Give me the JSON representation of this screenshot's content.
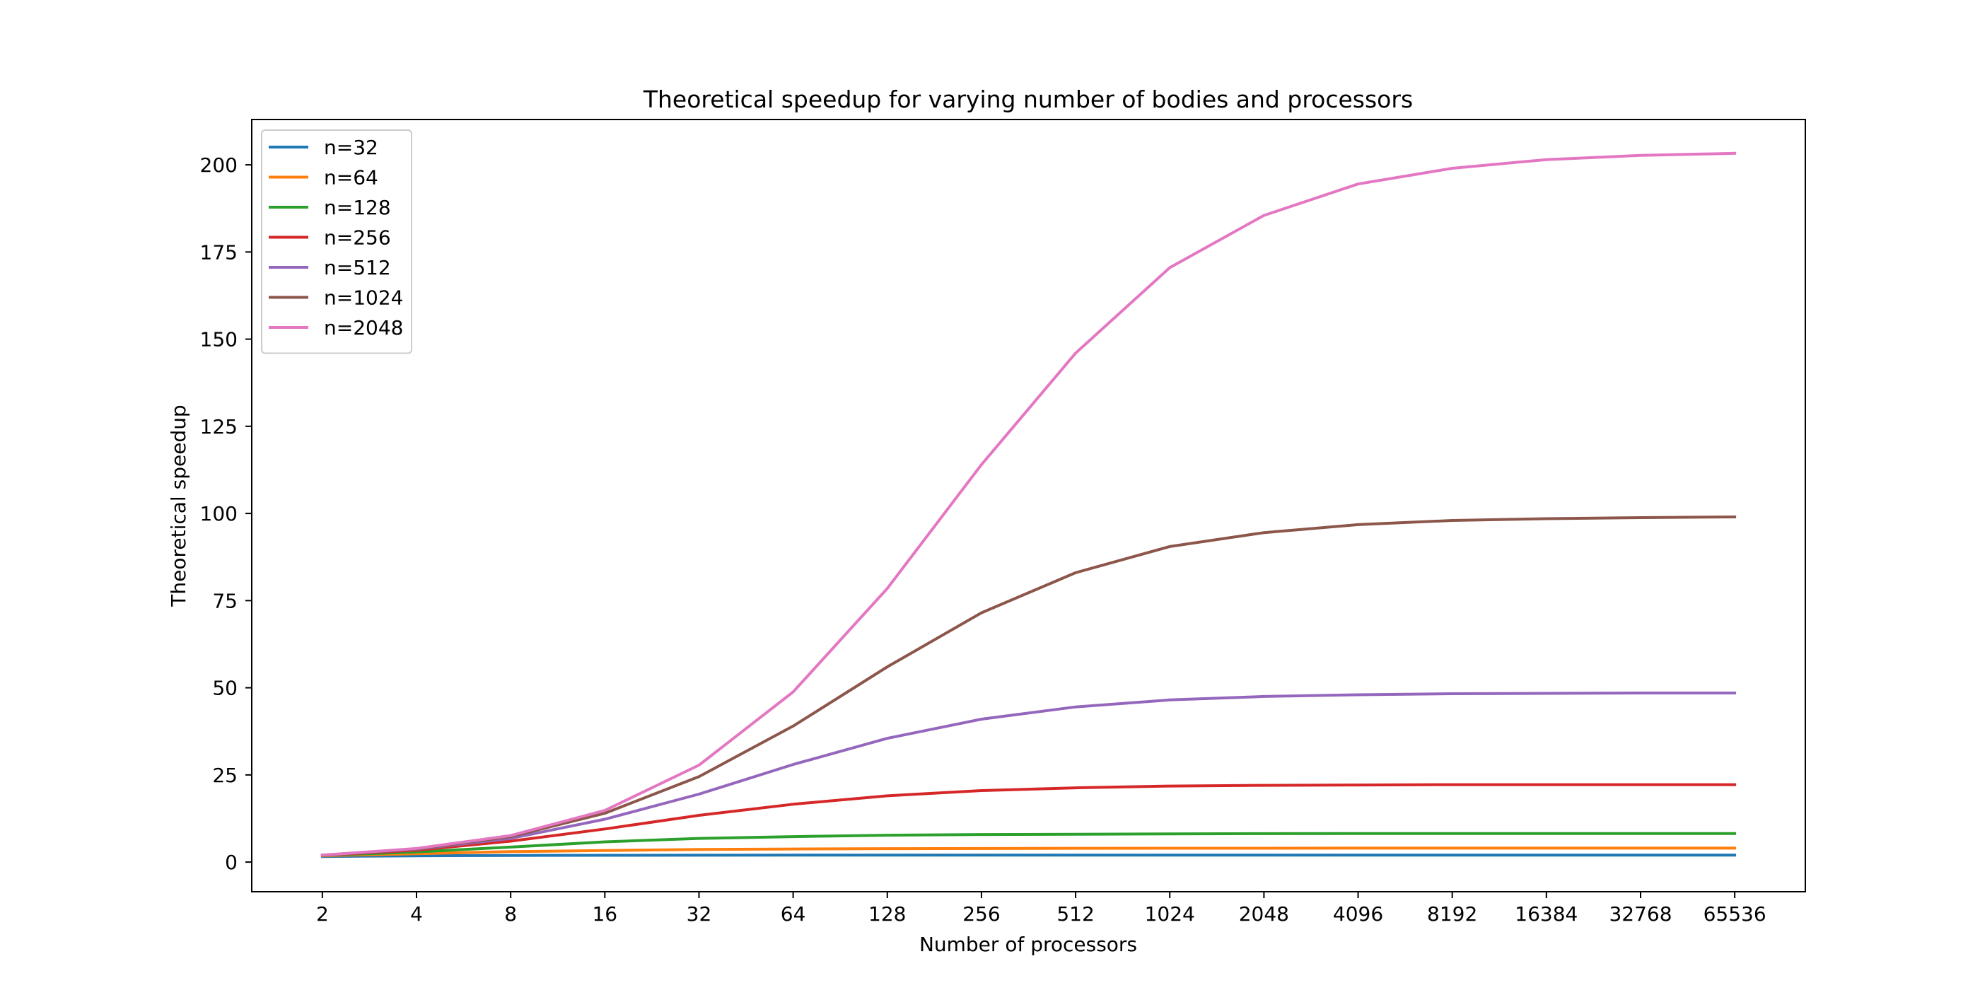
{
  "chart_data": {
    "type": "line",
    "title": "Theoretical speedup for varying number of bodies and processors",
    "xlabel": "Number of processors",
    "ylabel": "Theoretical speedup",
    "x_scale": "log2",
    "x": [
      2,
      4,
      8,
      16,
      32,
      64,
      128,
      256,
      512,
      1024,
      2048,
      4096,
      8192,
      16384,
      32768,
      65536
    ],
    "x_tick_labels": [
      "2",
      "4",
      "8",
      "16",
      "32",
      "64",
      "128",
      "256",
      "512",
      "1024",
      "2048",
      "4096",
      "8192",
      "16384",
      "32768",
      "65536"
    ],
    "y_ticks": [
      0,
      25,
      50,
      75,
      100,
      125,
      150,
      175,
      200
    ],
    "y_tick_labels": [
      "0",
      "25",
      "50",
      "75",
      "100",
      "125",
      "150",
      "175",
      "200"
    ],
    "ylim": [
      -8.5,
      213
    ],
    "grid": false,
    "legend_position": "upper-left",
    "series": [
      {
        "name": "n=32",
        "color": "#1f77b4",
        "values": [
          1.6,
          1.8,
          1.9,
          1.95,
          1.97,
          1.98,
          1.99,
          2.0,
          2.0,
          2.0,
          2.0,
          2.0,
          2.0,
          2.0,
          2.0,
          2.0
        ]
      },
      {
        "name": "n=64",
        "color": "#ff7f0e",
        "values": [
          1.8,
          2.4,
          3.0,
          3.3,
          3.6,
          3.75,
          3.85,
          3.9,
          3.95,
          3.97,
          3.98,
          4.0,
          4.0,
          4.0,
          4.0,
          4.0
        ]
      },
      {
        "name": "n=128",
        "color": "#2ca02c",
        "values": [
          1.9,
          2.9,
          4.3,
          5.8,
          6.8,
          7.3,
          7.7,
          7.9,
          8.0,
          8.1,
          8.15,
          8.2,
          8.2,
          8.2,
          8.2,
          8.2
        ]
      },
      {
        "name": "n=256",
        "color": "#d62728",
        "values": [
          1.95,
          3.4,
          6.0,
          9.5,
          13.4,
          16.6,
          19.0,
          20.5,
          21.3,
          21.8,
          22.0,
          22.1,
          22.2,
          22.2,
          22.2,
          22.2
        ]
      },
      {
        "name": "n=512",
        "color": "#9467bd",
        "values": [
          1.97,
          3.7,
          6.8,
          12.3,
          19.5,
          28.0,
          35.5,
          41.0,
          44.5,
          46.5,
          47.5,
          48.0,
          48.3,
          48.4,
          48.5,
          48.5
        ]
      },
      {
        "name": "n=1024",
        "color": "#8c564b",
        "values": [
          1.98,
          3.8,
          7.3,
          14.0,
          24.5,
          39.0,
          56.0,
          71.5,
          83.0,
          90.5,
          94.5,
          96.8,
          98.0,
          98.5,
          98.8,
          99.0
        ]
      },
      {
        "name": "n=2048",
        "color": "#e377c2",
        "values": [
          1.99,
          3.9,
          7.6,
          14.8,
          27.8,
          48.8,
          78.5,
          114.0,
          146.0,
          170.5,
          185.5,
          194.5,
          199.0,
          201.5,
          202.7,
          203.3
        ]
      }
    ]
  }
}
